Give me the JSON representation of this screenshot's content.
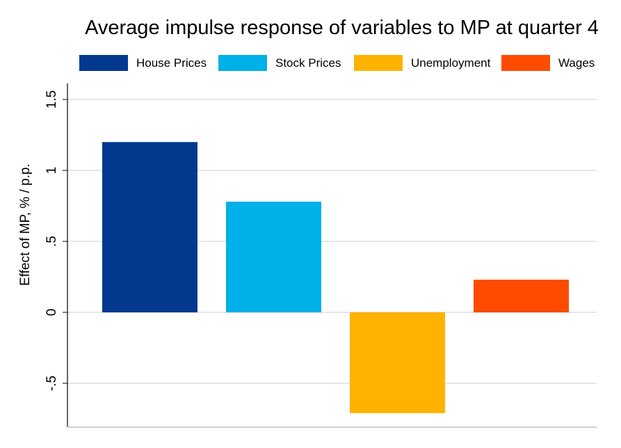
{
  "chart_data": {
    "type": "bar",
    "title": "Average impulse response of variables to MP at quarter 4",
    "xlabel": "",
    "ylabel": "Effect of MP, % / p.p.",
    "categories": [
      "House Prices",
      "Stock Prices",
      "Unemployment",
      "Wages"
    ],
    "values": [
      1.2,
      0.78,
      -0.71,
      0.23
    ],
    "colors": [
      "#02398f",
      "#00b0e8",
      "#ffb200",
      "#ff4b00"
    ],
    "ylim": [
      -0.8,
      1.6
    ],
    "yticks": [
      -0.5,
      0,
      0.5,
      1,
      1.5
    ],
    "ytick_labels": [
      "-.5",
      "0",
      ".5",
      "1",
      "1.5"
    ],
    "grid": true,
    "legend_position": "top"
  }
}
